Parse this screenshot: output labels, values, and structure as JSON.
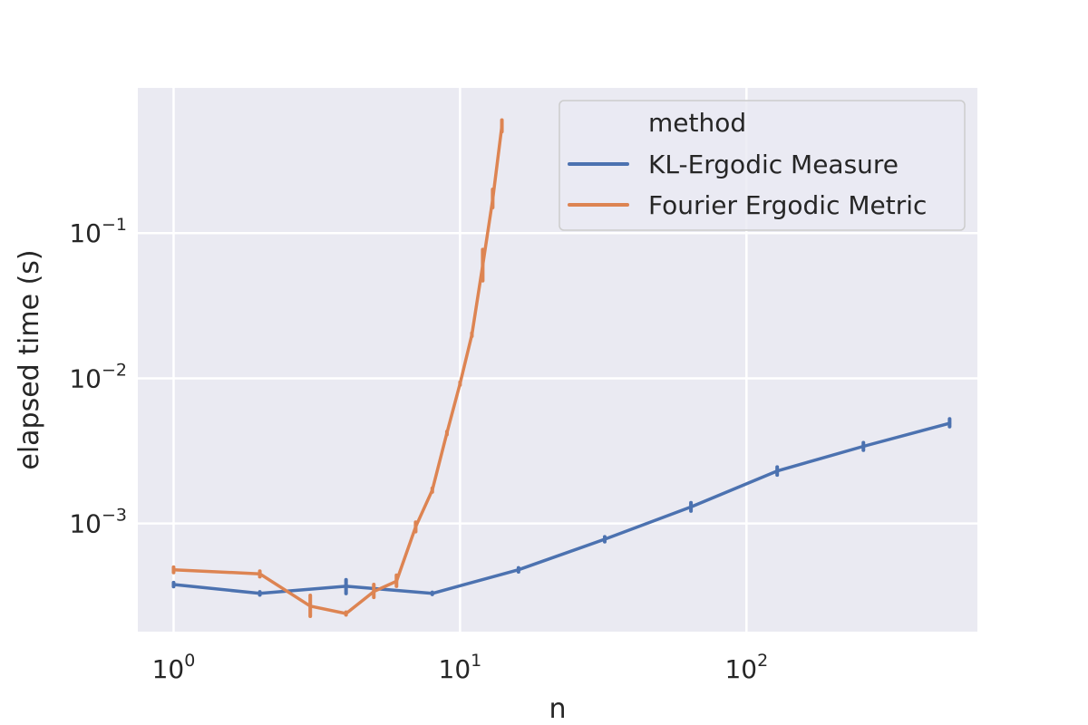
{
  "chart_data": {
    "type": "line",
    "title": "",
    "xlabel": "n",
    "ylabel": "elapsed time (s)",
    "xscale": "log",
    "yscale": "log",
    "xlim": [
      0.75,
      640
    ],
    "ylim": [
      0.00018,
      1.0
    ],
    "grid": true,
    "legend": {
      "placement": "top-right",
      "title": "method",
      "entries": [
        "KL-Ergodic Measure",
        "Fourier Ergodic Metric"
      ]
    },
    "x_ticks": [
      {
        "base": "10",
        "exp": "0",
        "value": 1
      },
      {
        "base": "10",
        "exp": "1",
        "value": 10
      },
      {
        "base": "10",
        "exp": "2",
        "value": 100
      }
    ],
    "y_ticks": [
      {
        "base": "10",
        "exp": "−3",
        "value": 0.001
      },
      {
        "base": "10",
        "exp": "−2",
        "value": 0.01
      },
      {
        "base": "10",
        "exp": "−1",
        "value": 0.1
      }
    ],
    "series": [
      {
        "name": "KL-Ergodic Measure",
        "color": "#4c72b0",
        "points": [
          {
            "x": 1,
            "y": 0.00038,
            "lo": 0.000368,
            "hi": 0.000392
          },
          {
            "x": 2,
            "y": 0.00033,
            "lo": 0.000322,
            "hi": 0.000338
          },
          {
            "x": 4,
            "y": 0.00037,
            "lo": 0.00033,
            "hi": 0.00041
          },
          {
            "x": 8,
            "y": 0.00033,
            "lo": 0.000325,
            "hi": 0.000336
          },
          {
            "x": 16,
            "y": 0.00048,
            "lo": 0.000465,
            "hi": 0.000495
          },
          {
            "x": 32,
            "y": 0.00078,
            "lo": 0.00075,
            "hi": 0.00081
          },
          {
            "x": 64,
            "y": 0.0013,
            "lo": 0.00122,
            "hi": 0.00139
          },
          {
            "x": 128,
            "y": 0.0023,
            "lo": 0.00216,
            "hi": 0.00245
          },
          {
            "x": 256,
            "y": 0.0034,
            "lo": 0.0032,
            "hi": 0.0036
          },
          {
            "x": 512,
            "y": 0.0049,
            "lo": 0.00465,
            "hi": 0.00525
          }
        ]
      },
      {
        "name": "Fourier Ergodic Metric",
        "color": "#dd8452",
        "points": [
          {
            "x": 1,
            "y": 0.00048,
            "lo": 0.00046,
            "hi": 0.0005
          },
          {
            "x": 2,
            "y": 0.00045,
            "lo": 0.00043,
            "hi": 0.00047
          },
          {
            "x": 3,
            "y": 0.00027,
            "lo": 0.00023,
            "hi": 0.00032
          },
          {
            "x": 4,
            "y": 0.00024,
            "lo": 0.000235,
            "hi": 0.000245
          },
          {
            "x": 5,
            "y": 0.00034,
            "lo": 0.00031,
            "hi": 0.00038
          },
          {
            "x": 6,
            "y": 0.0004,
            "lo": 0.00037,
            "hi": 0.00044
          },
          {
            "x": 7,
            "y": 0.00095,
            "lo": 0.00088,
            "hi": 0.00102
          },
          {
            "x": 8,
            "y": 0.0017,
            "lo": 0.00165,
            "hi": 0.00175
          },
          {
            "x": 9,
            "y": 0.0042,
            "lo": 0.0041,
            "hi": 0.0043
          },
          {
            "x": 10,
            "y": 0.0092,
            "lo": 0.009,
            "hi": 0.0094
          },
          {
            "x": 11,
            "y": 0.02,
            "lo": 0.0195,
            "hi": 0.0205
          },
          {
            "x": 12,
            "y": 0.06,
            "lo": 0.047,
            "hi": 0.077
          },
          {
            "x": 13,
            "y": 0.17,
            "lo": 0.15,
            "hi": 0.2
          },
          {
            "x": 14,
            "y": 0.55,
            "lo": 0.5,
            "hi": 0.6
          }
        ]
      }
    ]
  }
}
